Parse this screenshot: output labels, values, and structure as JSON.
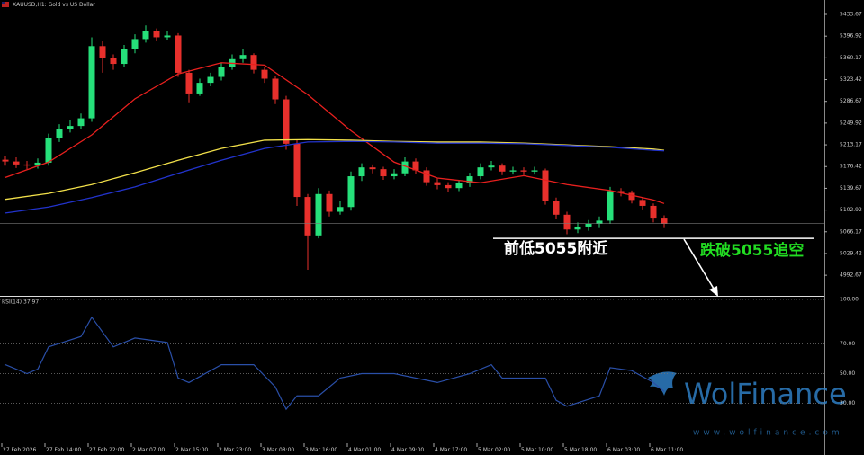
{
  "chart_data": [
    {
      "type": "candlestick",
      "title": "XAUUSD,H1: Gold vs US Dollar",
      "up_color": "#26e07a",
      "down_color": "#e8302c",
      "open": [
        5188,
        5185,
        5180,
        5178,
        5183,
        5225,
        5240,
        5245,
        5258,
        5380,
        5360,
        5350,
        5375,
        5392,
        5405,
        5395,
        5398,
        5335,
        5300,
        5318,
        5328,
        5345,
        5358,
        5365,
        5340,
        5325,
        5290,
        5215,
        5125,
        5060,
        5130,
        5100,
        5108,
        5160,
        5175,
        5172,
        5160,
        5165,
        5185,
        5170,
        5150,
        5145,
        5140,
        5148,
        5160,
        5175,
        5178,
        5168,
        5170,
        5168,
        5170,
        5118,
        5095,
        5070,
        5075,
        5080,
        5085,
        5135,
        5132,
        5120,
        5110,
        5090
      ],
      "high": [
        5195,
        5192,
        5186,
        5190,
        5232,
        5248,
        5255,
        5266,
        5395,
        5388,
        5366,
        5382,
        5400,
        5415,
        5410,
        5406,
        5402,
        5340,
        5325,
        5335,
        5352,
        5366,
        5375,
        5368,
        5345,
        5330,
        5296,
        5222,
        5130,
        5140,
        5136,
        5118,
        5168,
        5182,
        5180,
        5176,
        5172,
        5192,
        5190,
        5175,
        5156,
        5150,
        5154,
        5166,
        5182,
        5186,
        5182,
        5176,
        5175,
        5176,
        5173,
        5124,
        5100,
        5082,
        5086,
        5092,
        5142,
        5140,
        5136,
        5125,
        5114,
        5094
      ],
      "low": [
        5178,
        5174,
        5172,
        5173,
        5178,
        5218,
        5234,
        5240,
        5252,
        5335,
        5340,
        5344,
        5368,
        5386,
        5388,
        5390,
        5328,
        5285,
        5296,
        5312,
        5322,
        5340,
        5352,
        5334,
        5318,
        5282,
        5205,
        5110,
        5002,
        5055,
        5092,
        5095,
        5102,
        5152,
        5165,
        5154,
        5155,
        5160,
        5164,
        5144,
        5138,
        5133,
        5135,
        5142,
        5155,
        5170,
        5162,
        5163,
        5162,
        5163,
        5112,
        5088,
        5062,
        5064,
        5068,
        5074,
        5080,
        5126,
        5114,
        5104,
        5082,
        5074
      ],
      "close": [
        5185,
        5180,
        5178,
        5183,
        5225,
        5240,
        5245,
        5258,
        5380,
        5360,
        5350,
        5375,
        5392,
        5405,
        5395,
        5398,
        5335,
        5300,
        5318,
        5328,
        5345,
        5358,
        5365,
        5340,
        5325,
        5290,
        5215,
        5125,
        5060,
        5130,
        5100,
        5108,
        5160,
        5175,
        5172,
        5160,
        5165,
        5185,
        5170,
        5150,
        5145,
        5140,
        5148,
        5160,
        5175,
        5178,
        5168,
        5170,
        5168,
        5170,
        5118,
        5095,
        5070,
        5075,
        5080,
        5085,
        5135,
        5132,
        5120,
        5110,
        5090,
        5080
      ],
      "series": [
        {
          "color": "#e8201e",
          "x": [
            0,
            4,
            8,
            12,
            16,
            20,
            24,
            28,
            32,
            36,
            40,
            44,
            48,
            52,
            56,
            60,
            61
          ],
          "values": [
            5158,
            5184,
            5230,
            5291,
            5333,
            5352,
            5348,
            5298,
            5237,
            5184,
            5157,
            5149,
            5161,
            5146,
            5136,
            5120,
            5114
          ]
        },
        {
          "color": "#f2e04a",
          "x": [
            0,
            4,
            8,
            12,
            16,
            20,
            24,
            28,
            32,
            36,
            40,
            44,
            48,
            52,
            56,
            60,
            61
          ],
          "values": [
            5121,
            5131,
            5146,
            5166,
            5187,
            5207,
            5221,
            5222,
            5221,
            5219,
            5218,
            5218,
            5216,
            5213,
            5210,
            5206,
            5204
          ]
        },
        {
          "color": "#2233cc",
          "x": [
            0,
            4,
            8,
            12,
            16,
            20,
            24,
            28,
            32,
            36,
            40,
            44,
            48,
            52,
            56,
            60,
            61
          ],
          "values": [
            5098,
            5108,
            5124,
            5142,
            5165,
            5187,
            5207,
            5218,
            5219,
            5218,
            5216,
            5216,
            5215,
            5212,
            5209,
            5204,
            5203
          ]
        }
      ],
      "ylim": [
        4957.9,
        5458
      ],
      "yticks": [
        5433.67,
        5396.92,
        5360.17,
        5323.42,
        5286.67,
        5249.92,
        5213.17,
        5176.42,
        5139.67,
        5102.92,
        5066.17,
        5029.42,
        4992.67
      ],
      "xticks": [
        {
          "value": 0,
          "label": "27 Feb 2026"
        },
        {
          "value": 4,
          "label": "27 Feb 14:00"
        },
        {
          "value": 8,
          "label": "27 Feb 22:00"
        },
        {
          "value": 12,
          "label": "2 Mar 07:00"
        },
        {
          "value": 16,
          "label": "2 Mar 15:00"
        },
        {
          "value": 20,
          "label": "2 Mar 23:00"
        },
        {
          "value": 24,
          "label": "3 Mar 08:00"
        },
        {
          "value": 28,
          "label": "3 Mar 16:00"
        },
        {
          "value": 32,
          "label": "4 Mar 01:00"
        },
        {
          "value": 36,
          "label": "4 Mar 09:00"
        },
        {
          "value": 40,
          "label": "4 Mar 17:00"
        },
        {
          "value": 44,
          "label": "5 Mar 02:00"
        },
        {
          "value": 48,
          "label": "5 Mar 10:00"
        },
        {
          "value": 52,
          "label": "5 Mar 18:00"
        },
        {
          "value": 56,
          "label": "6 Mar 03:00"
        },
        {
          "value": 60,
          "label": "6 Mar 11:00"
        }
      ],
      "annotations": [
        {
          "text": "前低5055附近",
          "level": 5055,
          "color": "#ffffff"
        },
        {
          "text": "跌破5055追空",
          "color": "#22dd22"
        }
      ]
    },
    {
      "type": "line",
      "title": "RSI(14) 37.97",
      "color": "#2a4fa8",
      "x": [
        0,
        2,
        3,
        4,
        7,
        8,
        10,
        12,
        15,
        16,
        17,
        20,
        23,
        25,
        26,
        27,
        29,
        31,
        33,
        36,
        40,
        43,
        45,
        46,
        50,
        51,
        52,
        55,
        56,
        58,
        60,
        61
      ],
      "values": [
        56,
        50,
        53,
        68,
        75,
        88,
        68,
        74,
        71,
        47,
        44,
        56,
        56,
        41,
        26,
        35,
        35,
        47,
        50,
        50,
        44,
        50,
        56,
        47,
        47,
        32,
        28,
        35,
        54,
        52,
        44,
        37.97
      ],
      "ylim": [
        0,
        100
      ],
      "yticks": [
        {
          "value": 100,
          "label": "100.00"
        },
        {
          "value": 70,
          "label": "70.00"
        },
        {
          "value": 50,
          "label": "50.00"
        },
        {
          "value": 30,
          "label": "30.00"
        }
      ]
    }
  ],
  "watermark": {
    "brand": "WolFinance",
    "url": "www.wolfinance.com"
  }
}
